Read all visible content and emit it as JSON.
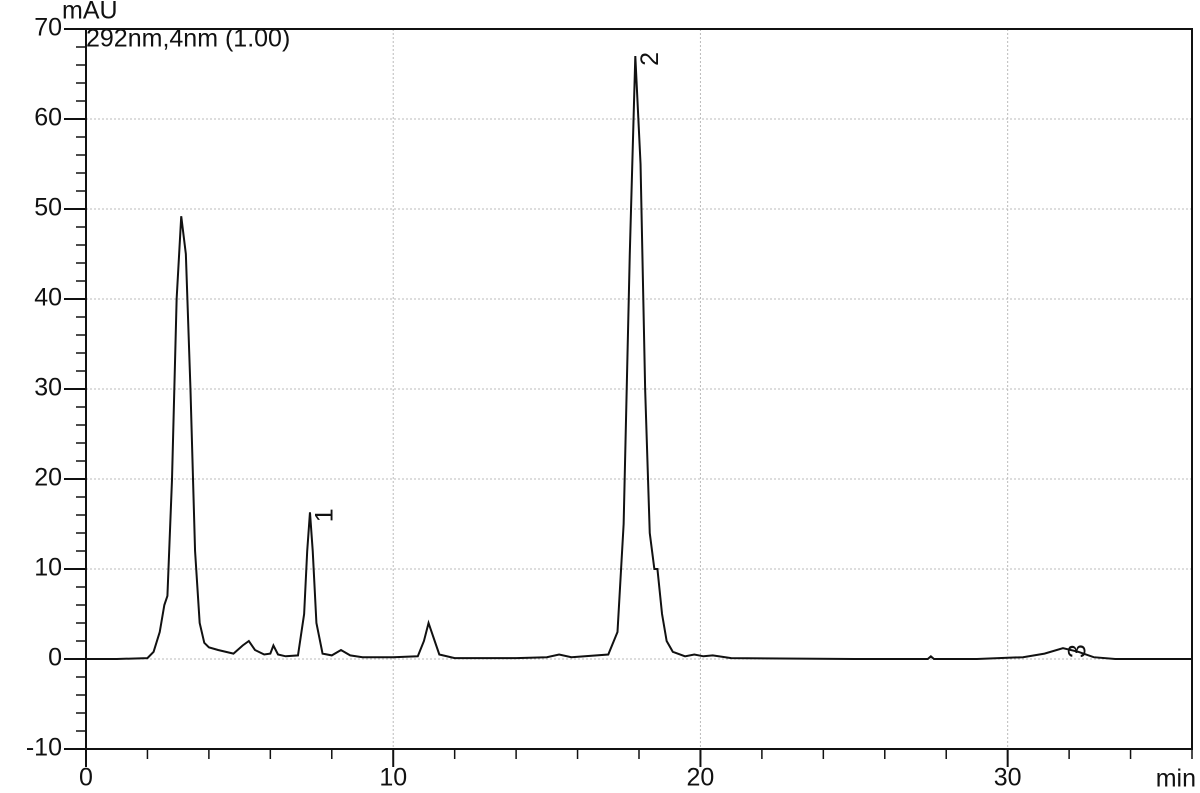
{
  "chart_data": {
    "type": "line",
    "subtitle": "292nm,4nm (1.00)",
    "y_label": "mAU",
    "x_label": "min",
    "x": [
      0,
      1,
      2,
      2.2,
      2.4,
      2.55,
      2.65,
      2.8,
      2.95,
      3.1,
      3.25,
      3.4,
      3.55,
      3.7,
      3.85,
      4.0,
      4.3,
      4.8,
      5.1,
      5.3,
      5.5,
      5.8,
      6.0,
      6.1,
      6.25,
      6.5,
      6.9,
      7.1,
      7.2,
      7.29,
      7.38,
      7.5,
      7.7,
      8.0,
      8.3,
      8.6,
      9.0,
      10,
      10.8,
      11.0,
      11.15,
      11.3,
      11.5,
      12,
      14,
      15,
      15.4,
      15.8,
      17,
      17.3,
      17.5,
      17.7,
      17.88,
      18.05,
      18.2,
      18.35,
      18.5,
      18.6,
      18.75,
      18.9,
      19.1,
      19.5,
      19.8,
      20.1,
      20.4,
      21,
      25,
      27.4,
      27.5,
      27.6,
      29,
      30.5,
      31.2,
      31.8,
      32.3,
      32.8,
      33.5,
      36
    ],
    "series": [
      {
        "color": "#111111",
        "values": [
          0,
          0,
          0.1,
          0.8,
          3,
          6,
          7,
          20,
          40,
          49.2,
          45,
          30,
          12,
          4,
          1.8,
          1.3,
          1,
          0.6,
          1.5,
          2,
          1,
          0.5,
          0.6,
          1.5,
          0.5,
          0.3,
          0.4,
          5,
          12,
          16.3,
          12,
          4,
          0.6,
          0.4,
          1,
          0.4,
          0.2,
          0.2,
          0.3,
          2,
          4,
          2.5,
          0.5,
          0.1,
          0.1,
          0.2,
          0.5,
          0.2,
          0.5,
          3,
          15,
          45,
          67,
          55,
          30,
          14,
          10,
          10,
          5,
          2,
          0.8,
          0.3,
          0.5,
          0.3,
          0.4,
          0.1,
          0,
          0,
          0.3,
          0,
          0,
          0.2,
          0.6,
          1.2,
          0.8,
          0.2,
          0,
          0
        ]
      }
    ],
    "annotations": [
      {
        "text": "1",
        "x": 7.29,
        "y": 16.3
      },
      {
        "text": "2",
        "x": 17.88,
        "y": 67
      },
      {
        "text": "3",
        "x": 31.8,
        "y": 1.2
      }
    ],
    "xlim": [
      0,
      36
    ],
    "ylim": [
      -10,
      70
    ],
    "xticks": [
      0,
      10,
      20,
      30
    ],
    "yticks": [
      -10,
      0,
      10,
      20,
      30,
      40,
      50,
      60,
      70
    ],
    "grid": true
  }
}
